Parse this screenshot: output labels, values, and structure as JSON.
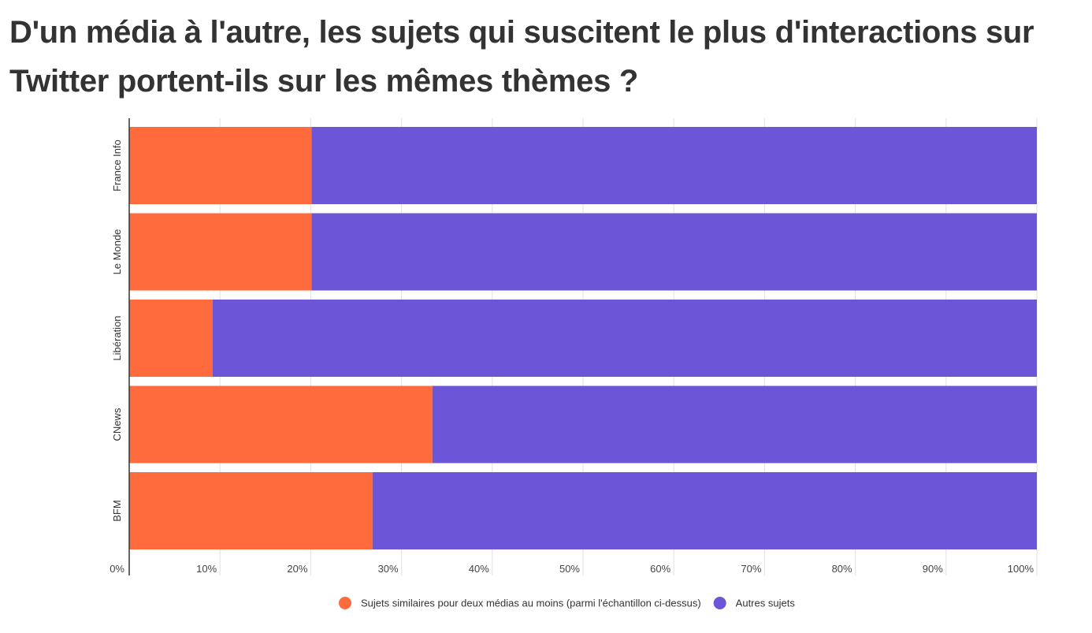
{
  "title": "D'un média à l'autre, les sujets qui suscitent le plus d'interactions sur Twitter portent-ils sur les mêmes thèmes ?",
  "chart_data": {
    "type": "bar",
    "orientation": "horizontal",
    "stacked": true,
    "categories": [
      "France Info",
      "Le Monde",
      "Libération",
      "CNews",
      "BFM"
    ],
    "series": [
      {
        "name": "Sujets similaires pour deux médias au moins (parmi l'échantillon ci-dessus)",
        "color": "#ff6b3d",
        "values": [
          20.1,
          20.1,
          9.2,
          33.4,
          26.8
        ]
      },
      {
        "name": "Autres sujets",
        "color": "#6c55d6",
        "values": [
          79.9,
          79.9,
          90.8,
          66.6,
          73.2
        ]
      }
    ],
    "xlim": [
      0,
      100
    ],
    "x_ticks": [
      "0%",
      "10%",
      "20%",
      "30%",
      "40%",
      "50%",
      "60%",
      "70%",
      "80%",
      "90%",
      "100%"
    ],
    "grid": true,
    "legend_position": "bottom"
  }
}
